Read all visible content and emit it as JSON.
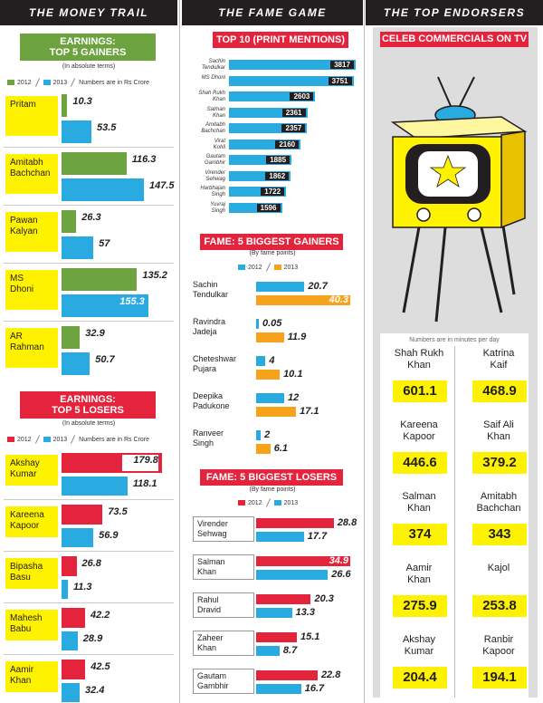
{
  "colors": {
    "green": "#6ca33e",
    "blue": "#29abe2",
    "red": "#e4233c",
    "orange": "#f7a21b",
    "yellow": "#fff200",
    "dark": "#231f20"
  },
  "headers": {
    "col1": "THE MONEY TRAIL",
    "col2": "THE FAME GAME",
    "col3": "THE TOP ENDORSERS"
  },
  "gainers": {
    "title1": "EARNINGS:",
    "title2": "TOP 5 GAINERS",
    "subtitle": "(In absolute terms)",
    "legend": {
      "y2012": "2012",
      "y2013": "2013",
      "note": "Numbers are in Rs Crore"
    },
    "chart_data": {
      "type": "bar",
      "title": "EARNINGS: TOP 5 GAINERS",
      "categories": [
        "Pritam",
        "Amitabh Bachchan",
        "Pawan Kalyan",
        "MS Dhoni",
        "AR Rahman"
      ],
      "series": [
        {
          "name": "2012",
          "values": [
            10.3,
            116.3,
            26.3,
            135.2,
            32.9
          ]
        },
        {
          "name": "2013",
          "values": [
            53.5,
            147.5,
            57,
            155.3,
            50.7
          ]
        }
      ],
      "labels": {
        "2012": [
          "10.3",
          "116.3",
          "26.3",
          "135.2",
          "32.9"
        ],
        "2013": [
          "53.5",
          "147.5",
          "57",
          "155.3",
          "50.7"
        ]
      },
      "unit": "Rs Crore"
    },
    "names": [
      [
        "Pritam"
      ],
      [
        "Amitabh",
        "Bachchan"
      ],
      [
        "Pawan",
        "Kalyan"
      ],
      [
        "MS",
        "Dhoni"
      ],
      [
        "AR",
        "Rahman"
      ]
    ]
  },
  "losers": {
    "title1": "EARNINGS:",
    "title2": "TOP 5 LOSERS",
    "subtitle": "(In absolute terms)",
    "legend": {
      "y2012": "2012",
      "y2013": "2013",
      "note": "Numbers are in Rs Crore"
    },
    "chart_data": {
      "type": "bar",
      "title": "EARNINGS: TOP 5 LOSERS",
      "categories": [
        "Akshay Kumar",
        "Kareena Kapoor",
        "Bipasha Basu",
        "Mahesh Babu",
        "Aamir Khan"
      ],
      "series": [
        {
          "name": "2012",
          "values": [
            179.8,
            73.5,
            26.8,
            42.2,
            42.5
          ]
        },
        {
          "name": "2013",
          "values": [
            118.1,
            56.9,
            11.3,
            28.9,
            32.4
          ]
        }
      ],
      "labels": {
        "2012": [
          "179.8",
          "73.5",
          "26.8",
          "42.2",
          "42.5"
        ],
        "2013": [
          "118.1",
          "56.9",
          "11.3",
          "28.9",
          "32.4"
        ]
      },
      "unit": "Rs Crore"
    },
    "names": [
      [
        "Akshay",
        "Kumar"
      ],
      [
        "Kareena",
        "Kapoor"
      ],
      [
        "Bipasha",
        "Basu"
      ],
      [
        "Mahesh",
        "Babu"
      ],
      [
        "Aamir",
        "Khan"
      ]
    ]
  },
  "top10": {
    "title": "TOP 10 (PRINT MENTIONS)",
    "chart_data": {
      "type": "bar",
      "title": "TOP 10 (PRINT MENTIONS)",
      "categories": [
        "Sachin Tendulkar",
        "MS Dhoni",
        "Shah Rukh Khan",
        "Salman Khan",
        "Amitabh Bachchan",
        "Virat Kohli",
        "Gautam Gambhir",
        "Virender Sehwag",
        "Harbhajan Singh",
        "Yuvraj Singh"
      ],
      "values": [
        3817,
        3751,
        2603,
        2361,
        2357,
        2160,
        1885,
        1862,
        1722,
        1596
      ],
      "labels": [
        "3817",
        "3751",
        "2603",
        "2361",
        "2357",
        "2160",
        "1885",
        "1862",
        "1722",
        "1596"
      ]
    },
    "names": [
      [
        "Sachin",
        "Tendulkar"
      ],
      [
        "MS Dhoni"
      ],
      [
        "Shah Rukh",
        "Khan"
      ],
      [
        "Salman",
        "Khan"
      ],
      [
        "Amitabh",
        "Bachchan"
      ],
      [
        "Virat",
        "Kohli"
      ],
      [
        "Gautam",
        "Gambhir"
      ],
      [
        "Virender",
        "Sehwag"
      ],
      [
        "Harbhajan",
        "Singh"
      ],
      [
        "Yuvraj",
        "Singh"
      ]
    ]
  },
  "famegainers": {
    "title": "FAME: 5 BIGGEST GAINERS",
    "subtitle": "(By fame points)",
    "legend": {
      "y2012": "2012",
      "y2013": "2013"
    },
    "chart_data": {
      "type": "bar",
      "title": "FAME: 5 BIGGEST GAINERS",
      "categories": [
        "Sachin Tendulkar",
        "Ravindra Jadeja",
        "Cheteshwar Pujara",
        "Deepika Padukone",
        "Ranveer Singh"
      ],
      "series": [
        {
          "name": "2012",
          "values": [
            20.7,
            0.05,
            4,
            12,
            2
          ]
        },
        {
          "name": "2013",
          "values": [
            40.3,
            11.9,
            10.1,
            17.1,
            6.1
          ]
        }
      ],
      "labels": {
        "2012": [
          "20.7",
          "0.05",
          "4",
          "12",
          "2"
        ],
        "2013": [
          "40.3",
          "11.9",
          "10.1",
          "17.1",
          "6.1"
        ]
      }
    },
    "names": [
      [
        "Sachin",
        "Tendulkar"
      ],
      [
        "Ravindra",
        "Jadeja"
      ],
      [
        "Cheteshwar",
        "Pujara"
      ],
      [
        "Deepika",
        "Padukone"
      ],
      [
        "Ranveer",
        "Singh"
      ]
    ]
  },
  "famelosers": {
    "title": "FAME: 5 BIGGEST LOSERS",
    "subtitle": "(By fame points)",
    "legend": {
      "y2012": "2012",
      "y2013": "2013"
    },
    "chart_data": {
      "type": "bar",
      "title": "FAME: 5 BIGGEST LOSERS",
      "categories": [
        "Virender Sehwag",
        "Salman Khan",
        "Rahul Dravid",
        "Zaheer Khan",
        "Gautam Gambhir"
      ],
      "series": [
        {
          "name": "2012",
          "values": [
            28.8,
            34.9,
            20.3,
            15.1,
            22.8
          ]
        },
        {
          "name": "2013",
          "values": [
            17.7,
            26.6,
            13.3,
            8.7,
            16.7
          ]
        }
      ],
      "labels": {
        "2012": [
          "28.8",
          "34.9",
          "20.3",
          "15.1",
          "22.8"
        ],
        "2013": [
          "17.7",
          "26.6",
          "13.3",
          "8.7",
          "16.7"
        ]
      }
    },
    "names": [
      [
        "Virender",
        "Sehwag"
      ],
      [
        "Salman",
        "Khan"
      ],
      [
        "Rahul",
        "Dravid"
      ],
      [
        "Zaheer",
        "Khan"
      ],
      [
        "Gautam",
        "Gambhir"
      ]
    ]
  },
  "celebs": {
    "title": "CELEB COMMERCIALS ON TV",
    "note": "Numbers are in minutes per day",
    "chart_data": {
      "type": "table",
      "title": "CELEB COMMERCIALS ON TV",
      "unit": "minutes per day",
      "categories": [
        "Shah Rukh Khan",
        "Katrina Kaif",
        "Kareena Kapoor",
        "Saif Ali Khan",
        "Salman Khan",
        "Amitabh Bachchan",
        "Aamir Khan",
        "Kajol",
        "Akshay Kumar",
        "Ranbir Kapoor"
      ],
      "values": [
        601.1,
        468.9,
        446.6,
        379.2,
        374,
        343,
        275.9,
        253.8,
        204.4,
        194.1
      ],
      "labels": [
        "601.1",
        "468.9",
        "446.6",
        "379.2",
        "374",
        "343",
        "275.9",
        "253.8",
        "204.4",
        "194.1"
      ]
    },
    "names": [
      [
        "Shah Rukh",
        "Khan"
      ],
      [
        "Katrina",
        "Kaif"
      ],
      [
        "Kareena",
        "Kapoor"
      ],
      [
        "Saif Ali",
        "Khan"
      ],
      [
        "Salman",
        "Khan"
      ],
      [
        "Amitabh",
        "Bachchan"
      ],
      [
        "Aamir",
        "Khan"
      ],
      [
        "Kajol"
      ],
      [
        "Akshay",
        "Kumar"
      ],
      [
        "Ranbir",
        "Kapoor"
      ]
    ]
  }
}
